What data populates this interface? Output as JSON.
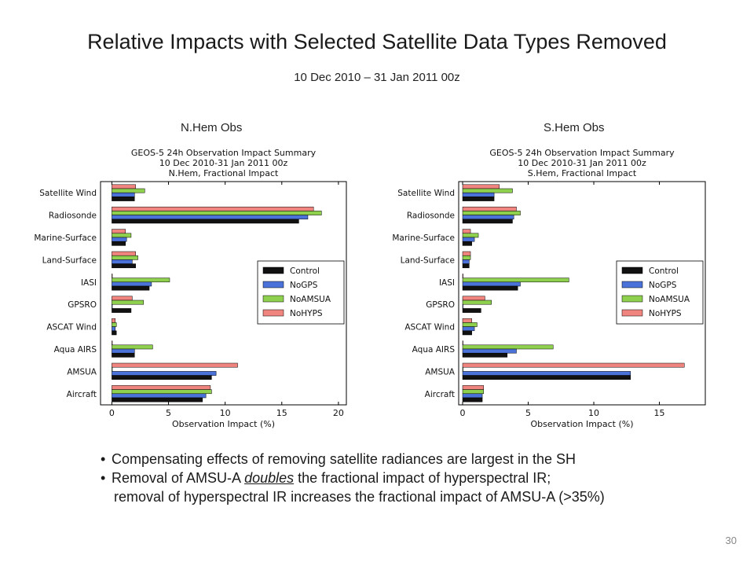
{
  "slide": {
    "title": "Relative Impacts with Selected Satellite Data Types Removed",
    "subtitle": "10 Dec 2010 – 31 Jan 2011  00z",
    "page_number": "30",
    "bullets": [
      {
        "pre": "Compensating effects of removing satellite radiances are largest in the SH",
        "emph": "",
        "post": "",
        "continuation": ""
      },
      {
        "pre": "Removal of AMSU-A ",
        "emph": "doubles",
        "post": " the fractional impact of hyperspectral IR;",
        "continuation": "removal of hyperspectral IR increases the fractional impact of AMSU-A (>35%)"
      }
    ]
  },
  "chart_data": [
    {
      "caption": "N.Hem Obs",
      "type": "bar",
      "orientation": "horizontal",
      "title_lines": [
        "GEOS-5 24h Observation Impact Summary",
        "10 Dec 2010-31 Jan 2011 00z",
        "N.Hem, Fractional Impact"
      ],
      "xlabel": "Observation Impact (%)",
      "xlim": [
        -1,
        20.7
      ],
      "xticks": [
        0,
        5,
        10,
        15,
        20
      ],
      "grid": false,
      "legend_position": "center-right",
      "categories": [
        "Satellite Wind",
        "Radiosonde",
        "Marine-Surface",
        "Land-Surface",
        "IASI",
        "GPSRO",
        "ASCAT Wind",
        "Aqua AIRS",
        "AMSUA",
        "Aircraft"
      ],
      "series": [
        {
          "name": "Control",
          "color": "#111111",
          "values": [
            2.0,
            16.5,
            1.2,
            2.1,
            3.3,
            1.7,
            0.4,
            2.0,
            8.8,
            8.0
          ]
        },
        {
          "name": "NoGPS",
          "color": "#4a72d8",
          "values": [
            2.0,
            17.3,
            1.3,
            1.8,
            3.5,
            0.0,
            0.3,
            2.0,
            9.2,
            8.3
          ]
        },
        {
          "name": "NoAMSUA",
          "color": "#8fd14f",
          "values": [
            2.9,
            18.5,
            1.7,
            2.3,
            5.1,
            2.8,
            0.4,
            3.6,
            0.0,
            8.8
          ]
        },
        {
          "name": "NoHYPS",
          "color": "#f0857f",
          "values": [
            2.1,
            17.8,
            1.2,
            2.1,
            0.0,
            1.8,
            0.3,
            0.0,
            11.1,
            8.7
          ]
        }
      ]
    },
    {
      "caption": "S.Hem Obs",
      "type": "bar",
      "orientation": "horizontal",
      "title_lines": [
        "GEOS-5 24h Observation Impact Summary",
        "10 Dec 2010-31 Jan 2011 00z",
        "S.Hem, Fractional Impact"
      ],
      "xlabel": "Observation Impact (%)",
      "xlim": [
        -0.3,
        18.5
      ],
      "xticks": [
        0,
        5,
        10,
        15
      ],
      "grid": false,
      "legend_position": "center-right",
      "categories": [
        "Satellite Wind",
        "Radiosonde",
        "Marine-Surface",
        "Land-Surface",
        "IASI",
        "GPSRO",
        "ASCAT Wind",
        "Aqua AIRS",
        "AMSUA",
        "Aircraft"
      ],
      "series": [
        {
          "name": "Control",
          "color": "#111111",
          "values": [
            2.4,
            3.8,
            0.7,
            0.5,
            4.2,
            1.4,
            0.7,
            3.4,
            12.8,
            1.5
          ]
        },
        {
          "name": "NoGPS",
          "color": "#4a72d8",
          "values": [
            2.4,
            3.9,
            0.9,
            0.5,
            4.4,
            0.0,
            0.9,
            4.1,
            12.8,
            1.5
          ]
        },
        {
          "name": "NoAMSUA",
          "color": "#8fd14f",
          "values": [
            3.8,
            4.4,
            1.2,
            0.6,
            8.1,
            2.2,
            1.1,
            6.9,
            0.0,
            1.6
          ]
        },
        {
          "name": "NoHYPS",
          "color": "#f0857f",
          "values": [
            2.8,
            4.1,
            0.6,
            0.6,
            0.0,
            1.7,
            0.7,
            0.0,
            16.9,
            1.6
          ]
        }
      ]
    }
  ]
}
